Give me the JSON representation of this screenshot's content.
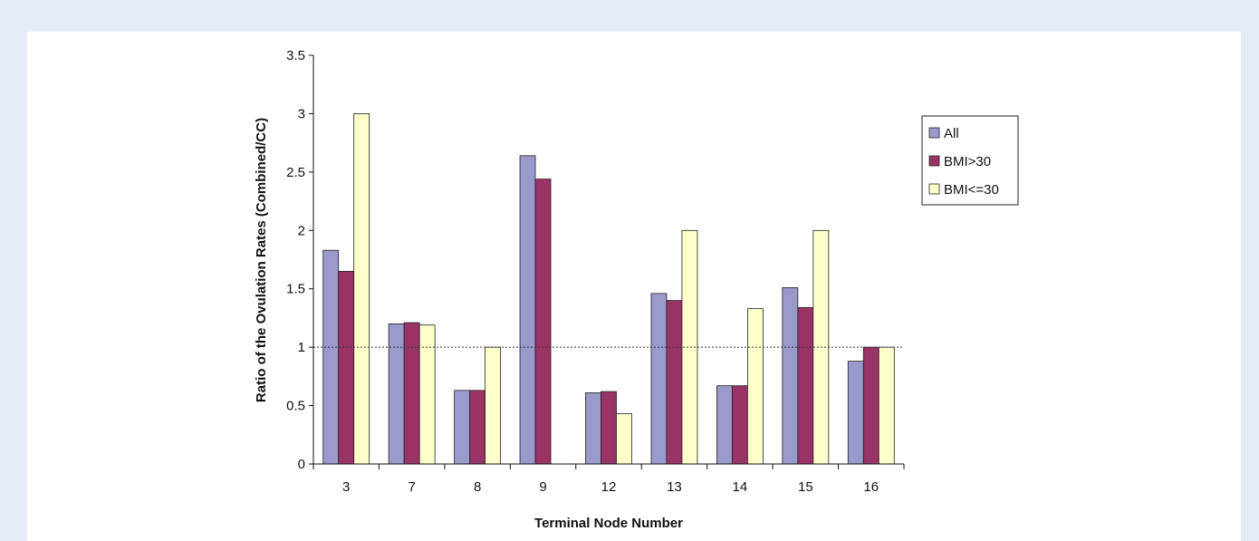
{
  "chart_data": {
    "type": "bar",
    "title": "",
    "xlabel": "Terminal Node Number",
    "ylabel": "Ratio of the Ovulation Rates (Combined/CC)",
    "categories": [
      "3",
      "7",
      "8",
      "9",
      "12",
      "13",
      "14",
      "15",
      "16"
    ],
    "series": [
      {
        "name": "All",
        "color": "#9999cc",
        "values": [
          1.83,
          1.2,
          0.63,
          2.64,
          0.61,
          1.46,
          0.67,
          1.51,
          0.88
        ]
      },
      {
        "name": "BMI>30",
        "color": "#993366",
        "values": [
          1.65,
          1.21,
          0.63,
          2.44,
          0.62,
          1.4,
          0.67,
          1.34,
          1.0
        ]
      },
      {
        "name": "BMI<=30",
        "color": "#ffffcc",
        "values": [
          3.0,
          1.19,
          1.0,
          null,
          0.43,
          2.0,
          1.33,
          2.0,
          1.0
        ]
      }
    ],
    "ylim": [
      0,
      3.5
    ],
    "yticks": [
      "0",
      "0.5",
      "1",
      "1.5",
      "2",
      "2.5",
      "3",
      "3.5"
    ],
    "reference_line": 1,
    "grid": false,
    "legend_position": "right"
  }
}
